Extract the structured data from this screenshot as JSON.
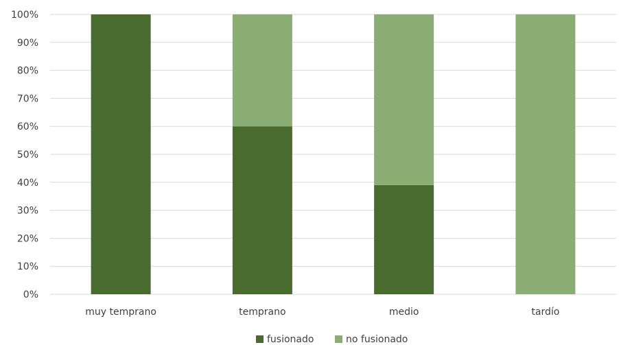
{
  "chart_data": {
    "type": "bar",
    "stacked": true,
    "percent_stacked": true,
    "categories": [
      "muy temprano",
      "temprano",
      "medio",
      "tardío"
    ],
    "series": [
      {
        "name": "fusionado",
        "values": [
          100,
          60,
          39,
          0
        ],
        "color": "#4a6b2e"
      },
      {
        "name": "no fusionado",
        "values": [
          0,
          40,
          61,
          100
        ],
        "color": "#8aad74"
      }
    ],
    "title": "",
    "xlabel": "",
    "ylabel": "",
    "ylim": [
      0,
      100
    ],
    "yticks": [
      "0%",
      "10%",
      "20%",
      "30%",
      "40%",
      "50%",
      "60%",
      "70%",
      "80%",
      "90%",
      "100%"
    ],
    "grid": true,
    "legend": "bottom"
  }
}
